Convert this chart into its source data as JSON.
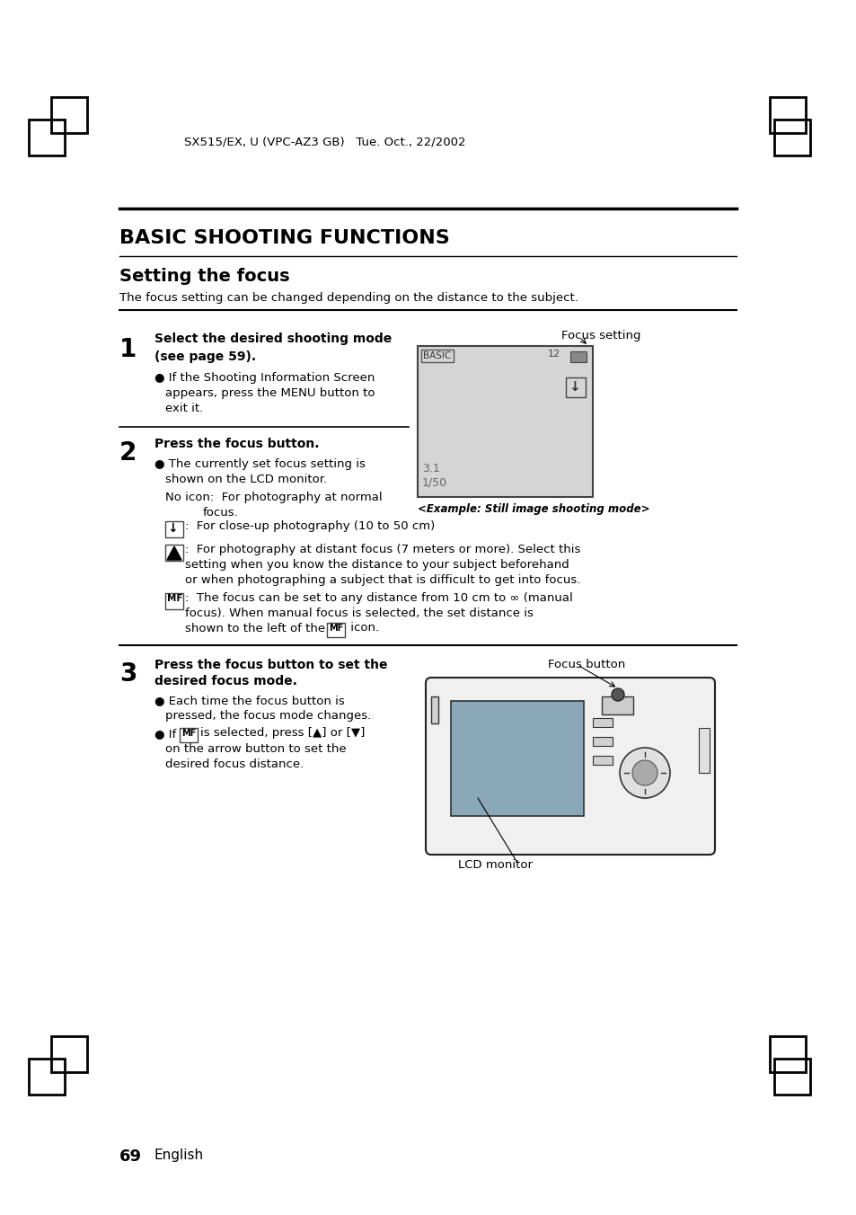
{
  "background_color": "#ffffff",
  "header_text": "SX515/EX, U (VPC-AZ3 GB)   Tue. Oct., 22/2002",
  "main_title": "BASIC SHOOTING FUNCTIONS",
  "section_title": "Setting the focus",
  "intro_text": "The focus setting can be changed depending on the distance to the subject.",
  "step1_num": "1",
  "step2_num": "2",
  "step3_num": "3",
  "focus_setting_label": "Focus setting",
  "focus_button_label": "Focus button",
  "lcd_monitor_label": "LCD monitor",
  "page_num": "69",
  "page_lang": "English",
  "screen_text_basic": "BASIC",
  "screen_text_12": "12",
  "screen_text_31": "3.1",
  "screen_text_150": "1/50",
  "step2_example": "<Example: Still image shooting mode>"
}
